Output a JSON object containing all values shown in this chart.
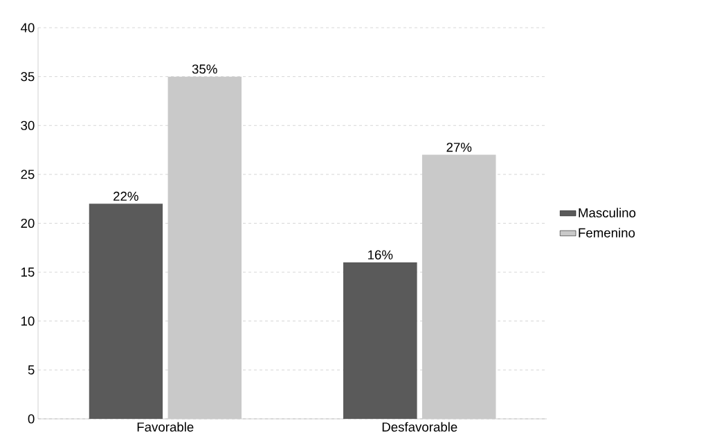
{
  "chart_data": {
    "type": "bar",
    "categories": [
      "Favorable",
      "Desfavorable"
    ],
    "series": [
      {
        "name": "Masculino",
        "color": "#5a5a5a",
        "values": [
          22,
          16
        ],
        "value_labels": [
          "22%",
          "16%"
        ]
      },
      {
        "name": "Femenino",
        "color": "#c9c9c9",
        "values": [
          35,
          27
        ],
        "value_labels": [
          "35%",
          "27%"
        ]
      }
    ],
    "ylim": [
      0,
      40
    ],
    "yticks": [
      0,
      5,
      10,
      15,
      20,
      25,
      30,
      35,
      40
    ],
    "grid": "y",
    "legend": "right"
  }
}
